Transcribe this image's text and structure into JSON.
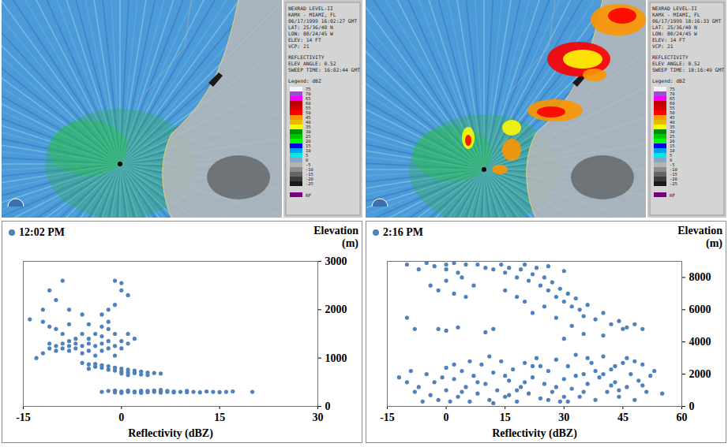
{
  "radar_panels": [
    {
      "header_lines": [
        "NEXRAD LEVEL-II",
        "KAMX - MIAMI, FL",
        "06/17/1999 16:02:27 GMT",
        "LAT: 25/36/40 N",
        "LON: 80/24/45 W",
        "ELEV: 14 FT",
        "VCP: 21"
      ],
      "product_lines": [
        "REFLECTIVITY",
        "ELEV ANGLE: 0.52",
        "SWEEP TIME: 16:02:44 GMT"
      ],
      "legend_title": "Legend: dBZ",
      "legend_ticks": [
        75,
        70,
        65,
        60,
        55,
        50,
        45,
        40,
        35,
        30,
        25,
        20,
        15,
        10,
        5,
        0,
        -5,
        -10,
        -15,
        -20,
        -25
      ],
      "legend_colors": [
        "#f4f4f4",
        "#9854c6",
        "#f800fd",
        "#bc0000",
        "#d40000",
        "#fd0000",
        "#fd9500",
        "#e5bc00",
        "#fdf802",
        "#008e00",
        "#01c501",
        "#02fd02",
        "#0300f4",
        "#019ff4",
        "#04e9e7",
        "#7fa8c8",
        "#b4b4b4",
        "#8c8c8c",
        "#646464",
        "#3c3c3c",
        "#1a1a1a"
      ],
      "rf_label": "RF",
      "rf_color": "#77007d",
      "echoes": false
    },
    {
      "header_lines": [
        "NEXRAD LEVEL-II",
        "KAMX - MIAMI, FL",
        "06/17/1999 18:16:33 GMT",
        "LAT: 25/36/40 N",
        "LON: 80/24/45 W",
        "ELEV: 14 FT",
        "VCP: 21"
      ],
      "product_lines": [
        "REFLECTIVITY",
        "ELEV ANGLE: 0.52",
        "SWEEP TIME: 18:16:49 GMT"
      ],
      "legend_title": "Legend: dBZ",
      "legend_ticks": [
        75,
        70,
        65,
        60,
        55,
        50,
        45,
        40,
        35,
        30,
        25,
        20,
        15,
        10,
        5,
        0,
        -5,
        -10,
        -15,
        -20,
        -25
      ],
      "legend_colors": [
        "#f4f4f4",
        "#9854c6",
        "#f800fd",
        "#bc0000",
        "#d40000",
        "#fd0000",
        "#fd9500",
        "#e5bc00",
        "#fdf802",
        "#008e00",
        "#01c501",
        "#02fd02",
        "#0300f4",
        "#019ff4",
        "#04e9e7",
        "#7fa8c8",
        "#b4b4b4",
        "#8c8c8c",
        "#646464",
        "#3c3c3c",
        "#1a1a1a"
      ],
      "rf_label": "RF",
      "rf_color": "#77007d",
      "echoes": true
    }
  ],
  "chart_data": [
    {
      "type": "scatter",
      "x_label": "Reflectivity (dBZ)",
      "y_label": "Elevation (m)",
      "xlim": [
        -15,
        30
      ],
      "xticks": [
        -15,
        0,
        15,
        30
      ],
      "ylim": [
        0,
        3000
      ],
      "yticks": [
        0,
        1000,
        2000,
        3000
      ],
      "legend": "top-left",
      "marker": "circle",
      "grid": false,
      "series": [
        {
          "name": "12:02 PM",
          "color": "#4f81bd",
          "x": [
            -3,
            -2,
            -1,
            0,
            0,
            1,
            1,
            2,
            2,
            3,
            3,
            4,
            4,
            5,
            5,
            6,
            6,
            7,
            7,
            8,
            8,
            9,
            10,
            10,
            11,
            12,
            13,
            14,
            15,
            16,
            17,
            20,
            -1,
            3,
            6,
            -6,
            -5,
            -4,
            -4,
            -3,
            -3,
            -2,
            -2,
            -1,
            -1,
            0,
            0,
            0,
            1,
            1,
            2,
            2,
            3,
            3,
            4,
            4,
            5,
            6,
            -5,
            1,
            -12,
            -11,
            -11,
            -10,
            -10,
            -9,
            -9,
            -8,
            -8,
            -8,
            -7,
            -7,
            -7,
            -6,
            -6,
            -6,
            -5,
            -5,
            -5,
            -4,
            -4,
            -4,
            -3,
            -3,
            -3,
            -2,
            -2,
            -2,
            -1,
            -1,
            -1,
            0,
            0,
            1,
            1,
            2,
            -9,
            -10,
            -11,
            -12,
            -13,
            -8,
            -5,
            -2,
            -3,
            -14,
            -11,
            -9,
            -10,
            -12,
            -8,
            -1,
            0,
            0,
            1,
            -2,
            -1,
            -3,
            -6
          ],
          "y": [
            300,
            320,
            290,
            310,
            280,
            300,
            330,
            290,
            310,
            300,
            280,
            320,
            295,
            300,
            330,
            285,
            310,
            300,
            320,
            290,
            310,
            300,
            295,
            320,
            300,
            290,
            310,
            300,
            295,
            300,
            310,
            300,
            330,
            325,
            340,
            900,
            870,
            880,
            820,
            850,
            800,
            830,
            760,
            800,
            740,
            780,
            720,
            680,
            760,
            700,
            740,
            690,
            720,
            660,
            700,
            650,
            690,
            680,
            780,
            650,
            1100,
            1200,
            1300,
            1250,
            1150,
            1300,
            1200,
            1250,
            1350,
            1150,
            1200,
            1400,
            1300,
            1250,
            1500,
            1100,
            1300,
            1400,
            1150,
            1250,
            1500,
            1050,
            1300,
            1450,
            1150,
            1350,
            1200,
            1600,
            1250,
            1500,
            1050,
            1350,
            1200,
            1500,
            1300,
            1400,
            1500,
            1600,
            1650,
            1750,
            1000,
            1700,
            1700,
            1750,
            1650,
            1800,
            2400,
            2600,
            2200,
            2000,
            2000,
            2600,
            2550,
            2400,
            2300,
            2000,
            2100,
            1900,
            1900
          ]
        }
      ]
    },
    {
      "type": "scatter",
      "x_label": "Reflectivity (dBZ)",
      "y_label": "Elevation (m)",
      "xlim": [
        -15,
        60
      ],
      "xticks": [
        -15,
        0,
        15,
        30,
        45,
        60
      ],
      "ylim": [
        0,
        9000
      ],
      "yticks": [
        0,
        2000,
        4000,
        6000,
        8000
      ],
      "legend": "top-left",
      "marker": "circle",
      "grid": false,
      "series": [
        {
          "name": "2:16 PM",
          "color": "#4f81bd",
          "x": [
            -10,
            -7,
            -5,
            -3,
            0,
            0,
            2,
            3,
            5,
            -10,
            -8,
            -4,
            -2,
            0,
            2,
            4,
            5,
            7,
            8,
            10,
            -2,
            0,
            3,
            12,
            14,
            15,
            16,
            18,
            19,
            20,
            21,
            22,
            23,
            24,
            25,
            26,
            27,
            28,
            29,
            30,
            31,
            32,
            33,
            34,
            35,
            36,
            38,
            40,
            42,
            44,
            46,
            48,
            50,
            30,
            35,
            40,
            45,
            20,
            25,
            15,
            18,
            28,
            32,
            12,
            22,
            10,
            26,
            30,
            -12,
            -10,
            -8,
            -7,
            -5,
            -4,
            -3,
            -2,
            0,
            0,
            1,
            2,
            3,
            4,
            5,
            6,
            7,
            8,
            9,
            10,
            11,
            12,
            13,
            14,
            15,
            16,
            17,
            18,
            19,
            20,
            21,
            22,
            23,
            24,
            25,
            26,
            27,
            28,
            29,
            30,
            31,
            32,
            33,
            34,
            35,
            36,
            37,
            38,
            39,
            40,
            41,
            42,
            43,
            44,
            45,
            46,
            47,
            48,
            49,
            50,
            51,
            52,
            53,
            55,
            -6,
            -1,
            6,
            11,
            18,
            24,
            30,
            36,
            42,
            48,
            20,
            28,
            35,
            40,
            44,
            33,
            26,
            15,
            8,
            2,
            -9,
            12,
            38,
            46,
            50,
            22,
            31,
            16,
            43,
            4
          ],
          "y": [
            8800,
            8500,
            8900,
            8700,
            8800,
            8500,
            8900,
            8300,
            8800,
            5500,
            4800,
            7500,
            7200,
            7800,
            7000,
            8000,
            6800,
            7500,
            8800,
            8600,
            4800,
            4700,
            4900,
            8500,
            8800,
            8300,
            8600,
            8000,
            8500,
            8800,
            7800,
            8200,
            8600,
            7500,
            8000,
            7200,
            7700,
            6800,
            7300,
            6500,
            7000,
            6200,
            6700,
            6000,
            5600,
            6300,
            5400,
            5800,
            5100,
            5300,
            4900,
            5100,
            4800,
            4200,
            4500,
            4400,
            4800,
            6500,
            6200,
            7200,
            6800,
            5500,
            5000,
            4800,
            5800,
            4600,
            8700,
            8400,
            1800,
            1500,
            900,
            1200,
            2000,
            700,
            1500,
            400,
            1000,
            2400,
            300,
            1700,
            600,
            2200,
            1200,
            300,
            1900,
            800,
            2600,
            1400,
            400,
            2100,
            1000,
            2800,
            600,
            1600,
            2300,
            300,
            1200,
            2700,
            800,
            1800,
            3000,
            500,
            1400,
            2200,
            900,
            2900,
            300,
            1700,
            2500,
            1100,
            3200,
            600,
            2000,
            1400,
            2700,
            400,
            1800,
            3100,
            900,
            2300,
            1500,
            600,
            2700,
            1200,
            2000,
            400,
            1600,
            2600,
            900,
            1900,
            2200,
            800,
            300,
            1800,
            2800,
            3100,
            1000,
            2500,
            600,
            3000,
            1300,
            2800,
            1500,
            1200,
            900,
            2000,
            1000,
            1900,
            400,
            1900,
            1500,
            2600,
            2200,
            200,
            2200,
            3000,
            1300,
            2500,
            300,
            700,
            2500,
            900
          ]
        }
      ]
    }
  ]
}
